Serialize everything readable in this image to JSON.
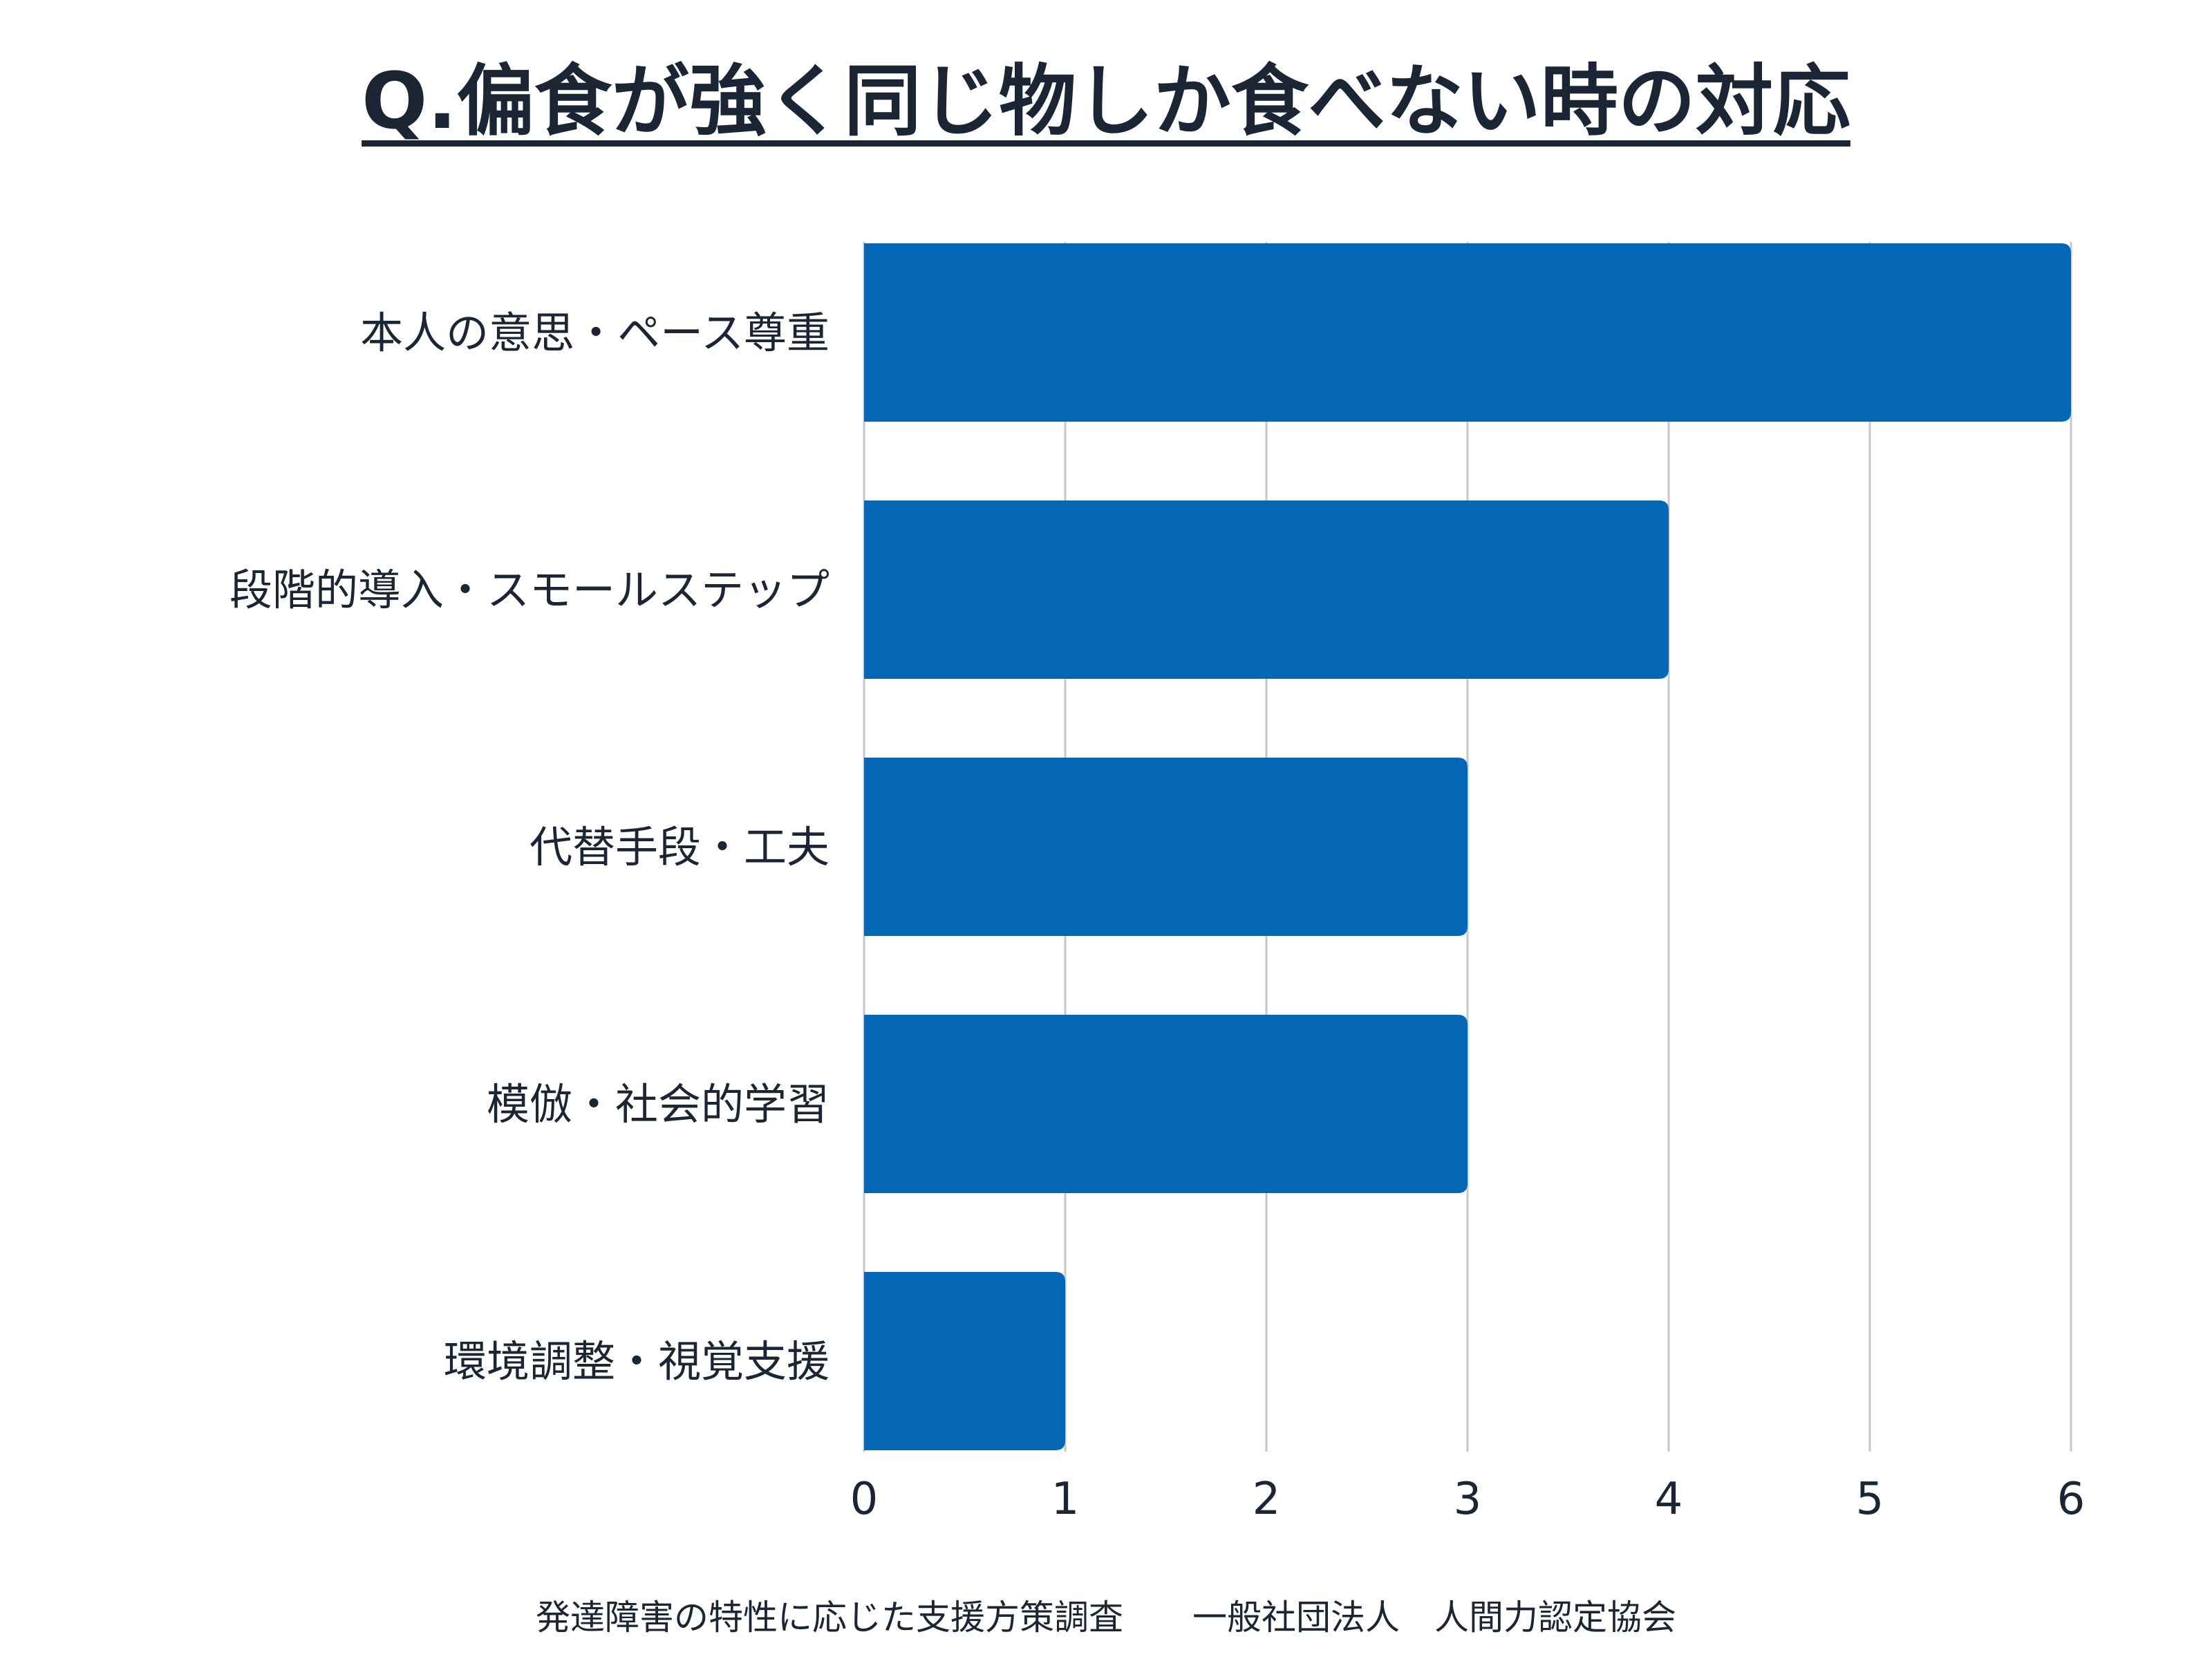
{
  "title": "Q.偏食が強く同じ物しか食べない時の対応",
  "footer": "発達障害の特性に応じた支援方策調査　　一般社団法人　人間力認定協会",
  "colors": {
    "bar": "#0367b6",
    "grid": "#c4c7cc",
    "text": "#1c2533"
  },
  "chart_data": {
    "type": "bar",
    "orientation": "horizontal",
    "categories": [
      "本人の意思・ペース尊重",
      "段階的導入・スモールステップ",
      "代替手段・工夫",
      "模倣・社会的学習",
      "環境調整・視覚支援"
    ],
    "values": [
      6,
      4,
      3,
      3,
      1
    ],
    "xlim": [
      0,
      6
    ],
    "xticks": [
      "0",
      "1",
      "2",
      "3",
      "4",
      "5",
      "6"
    ],
    "grid": true,
    "legend": "none"
  }
}
